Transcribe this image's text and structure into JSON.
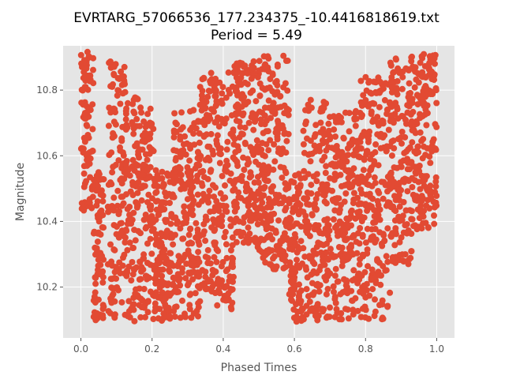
{
  "chart_data": {
    "type": "scatter",
    "title": "EVRTARG_57066536_177.234375_-10.4416818619.txt",
    "subtitle": "Period = 5.49",
    "xlabel": "Phased Times",
    "ylabel": "Magnitude",
    "xlim": [
      -0.05,
      1.05
    ],
    "ylim": [
      10.045,
      10.935
    ],
    "x_ticks": [
      "0.0",
      "0.2",
      "0.4",
      "0.6",
      "0.8",
      "1.0"
    ],
    "y_ticks": [
      "10.2",
      "10.4",
      "10.6",
      "10.8"
    ],
    "grid": true,
    "marker_color": "#E24A33",
    "background_color": "#E5E5E5",
    "light_curve_bands": [
      {
        "phase_start": 0.0,
        "phase_end": 0.035,
        "mag_low": 10.43,
        "mag_high": 10.92
      },
      {
        "phase_start": 0.035,
        "phase_end": 0.065,
        "mag_low": 10.09,
        "mag_high": 10.55
      },
      {
        "phase_start": 0.075,
        "phase_end": 0.125,
        "mag_low": 10.1,
        "mag_high": 10.9
      },
      {
        "phase_start": 0.125,
        "phase_end": 0.16,
        "mag_low": 10.09,
        "mag_high": 10.78
      },
      {
        "phase_start": 0.16,
        "phase_end": 0.205,
        "mag_low": 10.1,
        "mag_high": 10.75
      },
      {
        "phase_start": 0.205,
        "phase_end": 0.26,
        "mag_low": 10.09,
        "mag_high": 10.57
      },
      {
        "phase_start": 0.26,
        "phase_end": 0.33,
        "mag_low": 10.1,
        "mag_high": 10.74
      },
      {
        "phase_start": 0.33,
        "phase_end": 0.43,
        "mag_low": 10.13,
        "mag_high": 10.86
      },
      {
        "phase_start": 0.43,
        "phase_end": 0.495,
        "mag_low": 10.33,
        "mag_high": 10.89
      },
      {
        "phase_start": 0.495,
        "phase_end": 0.585,
        "mag_low": 10.25,
        "mag_high": 10.91
      },
      {
        "phase_start": 0.585,
        "phase_end": 0.625,
        "mag_low": 10.09,
        "mag_high": 10.55
      },
      {
        "phase_start": 0.625,
        "phase_end": 0.695,
        "mag_low": 10.09,
        "mag_high": 10.77
      },
      {
        "phase_start": 0.695,
        "phase_end": 0.785,
        "mag_low": 10.09,
        "mag_high": 10.74
      },
      {
        "phase_start": 0.785,
        "phase_end": 0.87,
        "mag_low": 10.1,
        "mag_high": 10.84
      },
      {
        "phase_start": 0.87,
        "phase_end": 0.93,
        "mag_low": 10.27,
        "mag_high": 10.9
      },
      {
        "phase_start": 0.93,
        "phase_end": 1.0,
        "mag_low": 10.37,
        "mag_high": 10.91
      }
    ]
  }
}
